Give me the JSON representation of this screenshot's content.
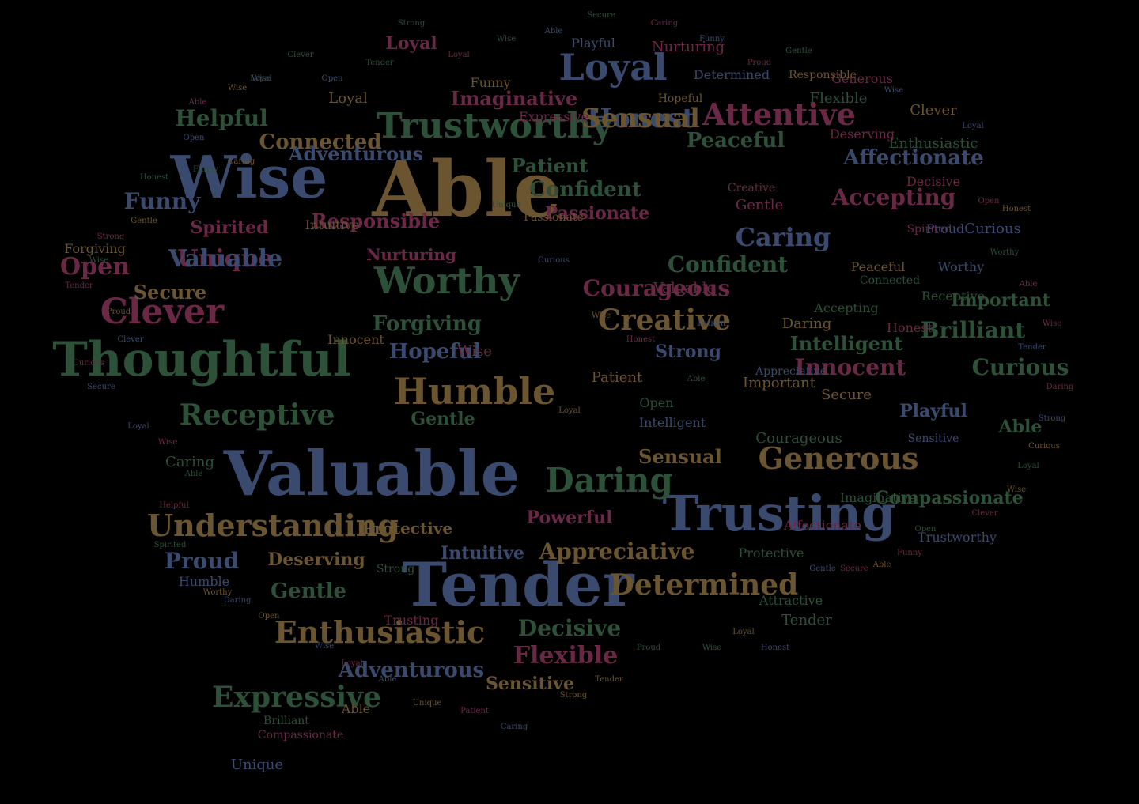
{
  "colors": {
    "blue": "#3a4a6e",
    "green": "#2c5038",
    "gold": "#6b5430",
    "maroon": "#6b2846",
    "background": "#000000"
  },
  "words": [
    {
      "t": "Able",
      "c": "gold",
      "w": "hero"
    },
    {
      "t": "Wise",
      "c": "blue",
      "w": "hero"
    },
    {
      "t": "Valuable",
      "c": "blue",
      "w": "hero"
    },
    {
      "t": "Tender",
      "c": "blue",
      "w": "hero"
    },
    {
      "t": "Trusting",
      "c": "blue",
      "w": "hero"
    },
    {
      "t": "Thoughtful",
      "c": "green",
      "w": "big"
    },
    {
      "t": "Trustworthy",
      "c": "green",
      "w": "big"
    },
    {
      "t": "Humble",
      "c": "gold",
      "w": "big"
    },
    {
      "t": "Loyal",
      "c": "blue",
      "w": "big"
    },
    {
      "t": "Clever",
      "c": "maroon",
      "w": "big"
    },
    {
      "t": "Understanding",
      "c": "gold",
      "w": "big"
    },
    {
      "t": "Enthusiastic",
      "c": "gold",
      "w": "big"
    },
    {
      "t": "Worthy",
      "c": "green",
      "w": "big"
    },
    {
      "t": "Generous",
      "c": "gold",
      "w": "big"
    },
    {
      "t": "Receptive",
      "c": "green",
      "w": "big"
    },
    {
      "t": "Daring",
      "c": "green",
      "w": "big"
    },
    {
      "t": "Determined",
      "c": "gold",
      "w": "big"
    },
    {
      "t": "Attentive",
      "c": "maroon",
      "w": "big"
    },
    {
      "t": "Creative",
      "c": "gold",
      "w": "big"
    },
    {
      "t": "Unique",
      "c": "maroon",
      "w": "mid"
    },
    {
      "t": "Honest",
      "c": "blue",
      "w": "mid"
    },
    {
      "t": "Caring",
      "c": "blue",
      "w": "mid"
    },
    {
      "t": "Accepting",
      "c": "maroon",
      "w": "mid"
    },
    {
      "t": "Affectionate",
      "c": "blue",
      "w": "mid"
    },
    {
      "t": "Innocent",
      "c": "maroon",
      "w": "mid"
    },
    {
      "t": "Curious",
      "c": "green",
      "w": "mid"
    },
    {
      "t": "Brilliant",
      "c": "green",
      "w": "mid"
    },
    {
      "t": "Important",
      "c": "green",
      "w": "mid"
    },
    {
      "t": "Compassionate",
      "c": "green",
      "w": "mid"
    },
    {
      "t": "Flexible",
      "c": "maroon",
      "w": "mid"
    },
    {
      "t": "Decisive",
      "c": "green",
      "w": "mid"
    },
    {
      "t": "Adventurous",
      "c": "blue",
      "w": "mid"
    },
    {
      "t": "Gentle",
      "c": "green",
      "w": "mid"
    },
    {
      "t": "Deserving",
      "c": "gold",
      "w": "mid"
    },
    {
      "t": "Proud",
      "c": "blue",
      "w": "mid"
    },
    {
      "t": "Appreciative",
      "c": "gold",
      "w": "mid"
    },
    {
      "t": "Confident",
      "c": "green",
      "w": "mid"
    },
    {
      "t": "Connected",
      "c": "gold",
      "w": "mid"
    },
    {
      "t": "Helpful",
      "c": "green",
      "w": "mid"
    },
    {
      "t": "Open",
      "c": "maroon",
      "w": "mid"
    },
    {
      "t": "Funny",
      "c": "blue",
      "w": "mid"
    },
    {
      "t": "Spirited",
      "c": "maroon",
      "w": "mid"
    },
    {
      "t": "Secure",
      "c": "gold",
      "w": "mid"
    },
    {
      "t": "Courageous",
      "c": "maroon",
      "w": "mid"
    },
    {
      "t": "Forgiving",
      "c": "green",
      "w": "mid"
    },
    {
      "t": "Hopeful",
      "c": "blue",
      "w": "mid"
    },
    {
      "t": "Gentle",
      "c": "green",
      "w": "mid"
    },
    {
      "t": "Nurturing",
      "c": "maroon",
      "w": "mid"
    },
    {
      "t": "Patient",
      "c": "green",
      "w": "mid"
    },
    {
      "t": "Passionate",
      "c": "maroon",
      "w": "mid"
    },
    {
      "t": "Confident",
      "c": "green",
      "w": "mid"
    },
    {
      "t": "Intelligent",
      "c": "green",
      "w": "mid"
    },
    {
      "t": "Playful",
      "c": "blue",
      "w": "mid"
    },
    {
      "t": "Peaceful",
      "c": "green",
      "w": "mid"
    },
    {
      "t": "Imaginative",
      "c": "maroon",
      "w": "mid"
    },
    {
      "t": "Protective",
      "c": "gold",
      "w": "mid"
    },
    {
      "t": "Powerful",
      "c": "maroon",
      "w": "mid"
    },
    {
      "t": "Sensual",
      "c": "gold",
      "w": "mid"
    },
    {
      "t": "Intuitive",
      "c": "blue",
      "w": "mid"
    },
    {
      "t": "Expressive",
      "c": "green",
      "w": "mid"
    },
    {
      "t": "Sensitive",
      "c": "gold",
      "w": "mid"
    },
    {
      "t": "Able",
      "c": "green",
      "w": "mid"
    },
    {
      "t": "Adventurous",
      "c": "blue",
      "w": "mid"
    },
    {
      "t": "Responsible",
      "c": "maroon",
      "w": "mid"
    },
    {
      "t": "Loyal",
      "c": "maroon",
      "w": "mid"
    },
    {
      "t": "Strong",
      "c": "blue",
      "w": "mid"
    },
    {
      "t": "Valuable",
      "c": "blue",
      "w": "mid"
    },
    {
      "t": "Sensual",
      "c": "gold",
      "w": "mid"
    },
    {
      "t": "Humble",
      "c": "blue",
      "w": "small"
    },
    {
      "t": "Unique",
      "c": "blue",
      "w": "small"
    },
    {
      "t": "Able",
      "c": "gold",
      "w": "small"
    },
    {
      "t": "Brilliant",
      "c": "green",
      "w": "small"
    },
    {
      "t": "Compassionate",
      "c": "maroon",
      "w": "small"
    },
    {
      "t": "Clever",
      "c": "gold",
      "w": "small"
    },
    {
      "t": "Loyal",
      "c": "gold",
      "w": "small"
    },
    {
      "t": "Wise",
      "c": "maroon",
      "w": "small"
    },
    {
      "t": "Receptive",
      "c": "green",
      "w": "small"
    },
    {
      "t": "Forgiving",
      "c": "gold",
      "w": "small"
    },
    {
      "t": "Tender",
      "c": "green",
      "w": "small"
    },
    {
      "t": "Enthusiastic",
      "c": "green",
      "w": "small"
    },
    {
      "t": "Trustworthy",
      "c": "blue",
      "w": "small"
    },
    {
      "t": "Worthy",
      "c": "blue",
      "w": "small"
    },
    {
      "t": "Flexible",
      "c": "green",
      "w": "small"
    },
    {
      "t": "Caring",
      "c": "green",
      "w": "small"
    },
    {
      "t": "Daring",
      "c": "gold",
      "w": "small"
    },
    {
      "t": "Secure",
      "c": "gold",
      "w": "small"
    },
    {
      "t": "Peaceful",
      "c": "gold",
      "w": "small"
    },
    {
      "t": "Gentle",
      "c": "maroon",
      "w": "small"
    },
    {
      "t": "Curious",
      "c": "blue",
      "w": "small"
    },
    {
      "t": "Honest",
      "c": "maroon",
      "w": "small"
    },
    {
      "t": "Important",
      "c": "gold",
      "w": "small"
    },
    {
      "t": "Attractive",
      "c": "green",
      "w": "small"
    },
    {
      "t": "Generous",
      "c": "maroon",
      "w": "small"
    },
    {
      "t": "Deserving",
      "c": "maroon",
      "w": "small"
    },
    {
      "t": "Connected",
      "c": "green",
      "w": "small"
    },
    {
      "t": "Accepting",
      "c": "green",
      "w": "small"
    },
    {
      "t": "Spirited",
      "c": "maroon",
      "w": "small"
    },
    {
      "t": "Proud",
      "c": "blue",
      "w": "small"
    },
    {
      "t": "Nurturing",
      "c": "maroon",
      "w": "small"
    },
    {
      "t": "Determined",
      "c": "blue",
      "w": "small"
    },
    {
      "t": "Funny",
      "c": "gold",
      "w": "small"
    },
    {
      "t": "Playful",
      "c": "blue",
      "w": "small"
    },
    {
      "t": "Creative",
      "c": "maroon",
      "w": "small"
    },
    {
      "t": "Intuitive",
      "c": "gold",
      "w": "small"
    },
    {
      "t": "Decisive",
      "c": "maroon",
      "w": "small"
    },
    {
      "t": "Strong",
      "c": "green",
      "w": "small"
    },
    {
      "t": "Patient",
      "c": "gold",
      "w": "small"
    },
    {
      "t": "Open",
      "c": "green",
      "w": "small"
    },
    {
      "t": "Hopeful",
      "c": "gold",
      "w": "small"
    },
    {
      "t": "Protective",
      "c": "green",
      "w": "small"
    },
    {
      "t": "Responsible",
      "c": "gold",
      "w": "small"
    },
    {
      "t": "Expressive",
      "c": "maroon",
      "w": "small"
    },
    {
      "t": "Trusting",
      "c": "maroon",
      "w": "small"
    },
    {
      "t": "Passionate",
      "c": "gold",
      "w": "small"
    },
    {
      "t": "Intelligent",
      "c": "blue",
      "w": "small"
    },
    {
      "t": "Courageous",
      "c": "green",
      "w": "small"
    },
    {
      "t": "Valuable",
      "c": "maroon",
      "w": "small"
    },
    {
      "t": "Appreciative",
      "c": "blue",
      "w": "small"
    },
    {
      "t": "Innocent",
      "c": "gold",
      "w": "small"
    },
    {
      "t": "Affectionate",
      "c": "maroon",
      "w": "small"
    },
    {
      "t": "Sensitive",
      "c": "blue",
      "w": "small"
    },
    {
      "t": "Imaginative",
      "c": "green",
      "w": "small"
    },
    {
      "t": "Loyal",
      "c": "green",
      "w": "tiny"
    },
    {
      "t": "Wise",
      "c": "gold",
      "w": "tiny"
    },
    {
      "t": "Able",
      "c": "maroon",
      "w": "tiny"
    },
    {
      "t": "Open",
      "c": "blue",
      "w": "tiny"
    },
    {
      "t": "Funny",
      "c": "green",
      "w": "tiny"
    },
    {
      "t": "Caring",
      "c": "gold",
      "w": "tiny"
    },
    {
      "t": "Honest",
      "c": "green",
      "w": "tiny"
    },
    {
      "t": "Gentle",
      "c": "gold",
      "w": "tiny"
    },
    {
      "t": "Strong",
      "c": "maroon",
      "w": "tiny"
    },
    {
      "t": "Wise",
      "c": "green",
      "w": "tiny"
    },
    {
      "t": "Tender",
      "c": "maroon",
      "w": "tiny"
    },
    {
      "t": "Proud",
      "c": "gold",
      "w": "tiny"
    },
    {
      "t": "Clever",
      "c": "blue",
      "w": "tiny"
    },
    {
      "t": "Curious",
      "c": "maroon",
      "w": "tiny"
    },
    {
      "t": "Secure",
      "c": "blue",
      "w": "tiny"
    },
    {
      "t": "Loyal",
      "c": "blue",
      "w": "tiny"
    },
    {
      "t": "Wise",
      "c": "maroon",
      "w": "tiny"
    },
    {
      "t": "Able",
      "c": "green",
      "w": "tiny"
    },
    {
      "t": "Helpful",
      "c": "maroon",
      "w": "tiny"
    },
    {
      "t": "Spirited",
      "c": "green",
      "w": "tiny"
    },
    {
      "t": "Worthy",
      "c": "gold",
      "w": "tiny"
    },
    {
      "t": "Daring",
      "c": "blue",
      "w": "tiny"
    },
    {
      "t": "Open",
      "c": "gold",
      "w": "tiny"
    },
    {
      "t": "Wise",
      "c": "blue",
      "w": "tiny"
    },
    {
      "t": "Loyal",
      "c": "maroon",
      "w": "tiny"
    },
    {
      "t": "Able",
      "c": "blue",
      "w": "tiny"
    },
    {
      "t": "Unique",
      "c": "gold",
      "w": "tiny"
    },
    {
      "t": "Patient",
      "c": "maroon",
      "w": "tiny"
    },
    {
      "t": "Caring",
      "c": "blue",
      "w": "tiny"
    },
    {
      "t": "Strong",
      "c": "gold",
      "w": "tiny"
    },
    {
      "t": "Tender",
      "c": "gold",
      "w": "tiny"
    },
    {
      "t": "Proud",
      "c": "green",
      "w": "tiny"
    },
    {
      "t": "Wise",
      "c": "green",
      "w": "tiny"
    },
    {
      "t": "Loyal",
      "c": "gold",
      "w": "tiny"
    },
    {
      "t": "Honest",
      "c": "blue",
      "w": "tiny"
    },
    {
      "t": "Gentle",
      "c": "blue",
      "w": "tiny"
    },
    {
      "t": "Secure",
      "c": "maroon",
      "w": "tiny"
    },
    {
      "t": "Able",
      "c": "gold",
      "w": "tiny"
    },
    {
      "t": "Funny",
      "c": "maroon",
      "w": "tiny"
    },
    {
      "t": "Open",
      "c": "green",
      "w": "tiny"
    },
    {
      "t": "Clever",
      "c": "maroon",
      "w": "tiny"
    },
    {
      "t": "Wise",
      "c": "gold",
      "w": "tiny"
    },
    {
      "t": "Loyal",
      "c": "green",
      "w": "tiny"
    },
    {
      "t": "Curious",
      "c": "gold",
      "w": "tiny"
    },
    {
      "t": "Strong",
      "c": "blue",
      "w": "tiny"
    },
    {
      "t": "Daring",
      "c": "maroon",
      "w": "tiny"
    },
    {
      "t": "Tender",
      "c": "blue",
      "w": "tiny"
    },
    {
      "t": "Wise",
      "c": "maroon",
      "w": "tiny"
    },
    {
      "t": "Able",
      "c": "maroon",
      "w": "tiny"
    },
    {
      "t": "Worthy",
      "c": "green",
      "w": "tiny"
    },
    {
      "t": "Honest",
      "c": "gold",
      "w": "tiny"
    },
    {
      "t": "Open",
      "c": "maroon",
      "w": "tiny"
    },
    {
      "t": "Loyal",
      "c": "blue",
      "w": "tiny"
    },
    {
      "t": "Wise",
      "c": "blue",
      "w": "tiny"
    },
    {
      "t": "Gentle",
      "c": "green",
      "w": "tiny"
    },
    {
      "t": "Proud",
      "c": "maroon",
      "w": "tiny"
    },
    {
      "t": "Funny",
      "c": "blue",
      "w": "tiny"
    },
    {
      "t": "Caring",
      "c": "maroon",
      "w": "tiny"
    },
    {
      "t": "Secure",
      "c": "green",
      "w": "tiny"
    },
    {
      "t": "Able",
      "c": "blue",
      "w": "tiny"
    },
    {
      "t": "Wise",
      "c": "green",
      "w": "tiny"
    },
    {
      "t": "Loyal",
      "c": "maroon",
      "w": "tiny"
    },
    {
      "t": "Strong",
      "c": "green",
      "w": "tiny"
    },
    {
      "t": "Tender",
      "c": "green",
      "w": "tiny"
    },
    {
      "t": "Open",
      "c": "blue",
      "w": "tiny"
    },
    {
      "t": "Clever",
      "c": "green",
      "w": "tiny"
    },
    {
      "t": "Curious",
      "c": "blue",
      "w": "tiny"
    },
    {
      "t": "Wise",
      "c": "gold",
      "w": "tiny"
    },
    {
      "t": "Honest",
      "c": "maroon",
      "w": "tiny"
    },
    {
      "t": "Loyal",
      "c": "gold",
      "w": "tiny"
    },
    {
      "t": "Able",
      "c": "green",
      "w": "tiny"
    },
    {
      "t": "Patient",
      "c": "blue",
      "w": "tiny"
    },
    {
      "t": "Unique",
      "c": "green",
      "w": "tiny"
    },
    {
      "t": "Wise",
      "c": "blue",
      "w": "tiny"
    }
  ]
}
